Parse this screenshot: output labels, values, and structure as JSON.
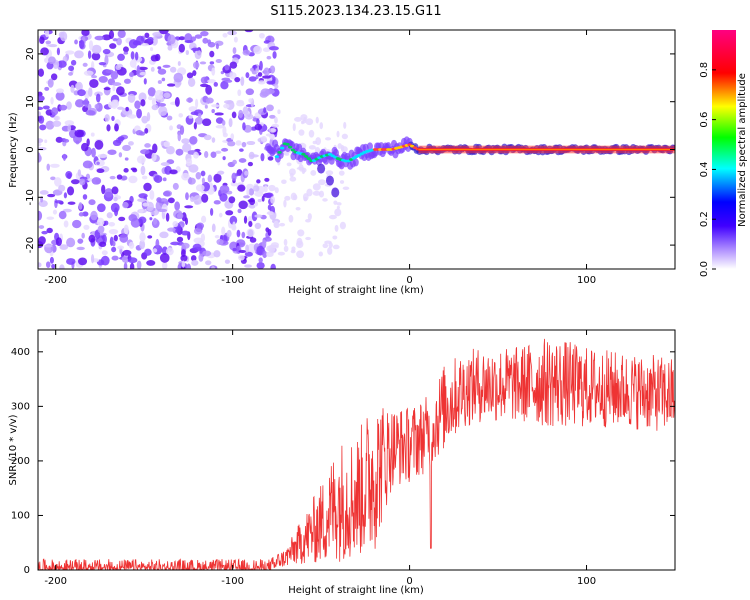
{
  "title": "S115.2023.134.23.15.G11",
  "chart_data": [
    {
      "type": "heatmap",
      "xlabel": "Height of straight line (km)",
      "ylabel": "Frequency (Hz)",
      "xlim": [
        -210,
        150
      ],
      "ylim": [
        -25,
        25
      ],
      "xticks": [
        -200,
        -100,
        0,
        100
      ],
      "yticks": [
        -20,
        -10,
        0,
        10,
        20
      ],
      "noise_region_x": [
        -210,
        -75
      ],
      "signal_trace": [
        {
          "x": -75,
          "y": -1.5
        },
        {
          "x": -70,
          "y": 1.5
        },
        {
          "x": -65,
          "y": -0.5
        },
        {
          "x": -60,
          "y": -1.0
        },
        {
          "x": -55,
          "y": -2.5
        },
        {
          "x": -50,
          "y": -1.5
        },
        {
          "x": -45,
          "y": -1.0
        },
        {
          "x": -40,
          "y": -2.0
        },
        {
          "x": -35,
          "y": -2.5
        },
        {
          "x": -30,
          "y": -1.5
        },
        {
          "x": -25,
          "y": -0.5
        },
        {
          "x": -20,
          "y": 0.0
        },
        {
          "x": -15,
          "y": 0.0
        },
        {
          "x": -10,
          "y": 0.0
        },
        {
          "x": -5,
          "y": 0.5
        },
        {
          "x": 0,
          "y": 1.0
        },
        {
          "x": 5,
          "y": 0.0
        },
        {
          "x": 20,
          "y": 0.0
        },
        {
          "x": 60,
          "y": 0.0
        },
        {
          "x": 100,
          "y": 0.0
        },
        {
          "x": 150,
          "y": 0.0
        }
      ],
      "side_branch": [
        {
          "x": -50,
          "y": -4.0
        },
        {
          "x": -45,
          "y": -6.5
        },
        {
          "x": -42,
          "y": -9.0
        }
      ]
    },
    {
      "type": "line",
      "xlabel": "Height of straight line (km)",
      "ylabel": "SNR (10 * v/v)",
      "xlim": [
        -210,
        150
      ],
      "ylim": [
        0,
        440
      ],
      "xticks": [
        -200,
        -100,
        0,
        100
      ],
      "yticks": [
        0,
        100,
        200,
        300,
        400
      ],
      "series": [
        {
          "color": "#ee3333",
          "envelope": [
            {
              "x": -210,
              "lo": 0,
              "hi": 20
            },
            {
              "x": -80,
              "lo": 0,
              "hi": 20
            },
            {
              "x": -70,
              "lo": 5,
              "hi": 40
            },
            {
              "x": -60,
              "lo": 10,
              "hi": 100
            },
            {
              "x": -50,
              "lo": 10,
              "hi": 160
            },
            {
              "x": -40,
              "lo": 15,
              "hi": 240
            },
            {
              "x": -30,
              "lo": 20,
              "hi": 250
            },
            {
              "x": -20,
              "lo": 30,
              "hi": 320
            },
            {
              "x": -10,
              "lo": 150,
              "hi": 300
            },
            {
              "x": 0,
              "lo": 160,
              "hi": 300
            },
            {
              "x": 10,
              "lo": 180,
              "hi": 320
            },
            {
              "x": 20,
              "lo": 220,
              "hi": 380
            },
            {
              "x": 30,
              "lo": 260,
              "hi": 400
            },
            {
              "x": 40,
              "lo": 270,
              "hi": 410
            },
            {
              "x": 60,
              "lo": 270,
              "hi": 410
            },
            {
              "x": 80,
              "lo": 260,
              "hi": 430
            },
            {
              "x": 100,
              "lo": 260,
              "hi": 410
            },
            {
              "x": 120,
              "lo": 260,
              "hi": 400
            },
            {
              "x": 150,
              "lo": 250,
              "hi": 390
            }
          ],
          "dips": [
            {
              "x": 12,
              "y": 40
            }
          ]
        }
      ]
    }
  ],
  "colorbar": {
    "label": "Normalized spectral amplitude",
    "range": [
      0,
      0.96
    ],
    "ticks": [
      "0.0",
      "0.2",
      "0.4",
      "0.6",
      "0.8"
    ],
    "colors": [
      "#ffffff",
      "#6000ff",
      "#0000ff",
      "#00ffff",
      "#00ff00",
      "#ffff00",
      "#ff0000",
      "#ff0080"
    ]
  }
}
